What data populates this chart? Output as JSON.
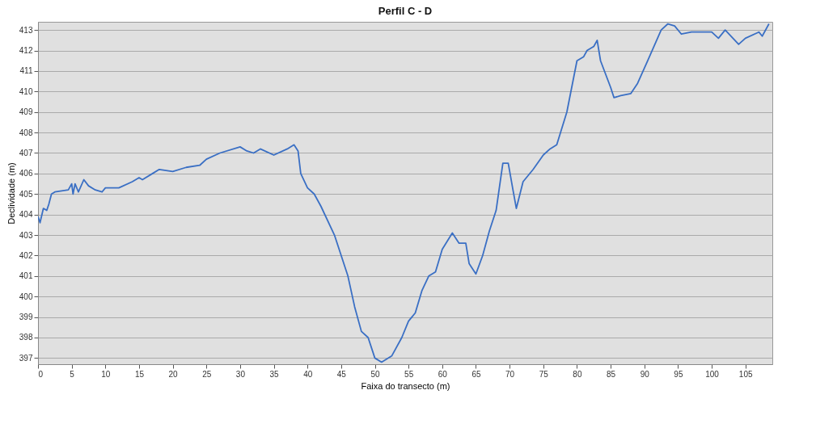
{
  "chart_data": {
    "type": "line",
    "title": "Perfil C - D",
    "xlabel": "Faixa do transecto (m)",
    "ylabel": "Declividade (m)",
    "xlim": [
      0,
      109
    ],
    "xticks": [
      0,
      5,
      10,
      15,
      20,
      25,
      30,
      35,
      40,
      45,
      50,
      55,
      60,
      65,
      70,
      75,
      80,
      85,
      90,
      95,
      100,
      105
    ],
    "ylim": [
      396.7,
      413.4
    ],
    "yticks": [
      397,
      398,
      399,
      400,
      401,
      402,
      403,
      404,
      405,
      406,
      407,
      408,
      409,
      410,
      411,
      412,
      413
    ],
    "grid": "y",
    "marker": "none",
    "line_style": "solid",
    "series": [
      {
        "color": "#3a6fc4",
        "x": [
          0,
          0.3,
          0.8,
          1.3,
          1.6,
          2,
          2.5,
          4.5,
          5,
          5.2,
          5.5,
          6,
          6.8,
          7.5,
          8.5,
          9.5,
          10,
          12,
          14,
          15,
          15.5,
          17,
          18,
          20,
          22,
          24,
          25,
          27,
          30,
          31,
          32,
          33,
          35,
          37,
          38,
          38.6,
          39,
          40,
          41,
          42,
          44,
          46,
          47,
          48,
          49,
          50,
          51,
          52.5,
          54,
          55,
          56,
          57,
          58,
          59,
          60,
          61.5,
          62.5,
          63.5,
          64,
          65,
          66,
          67,
          68,
          69,
          69.8,
          70.5,
          71,
          72,
          73.5,
          75,
          76,
          77,
          78.5,
          80,
          81,
          81.5,
          82.5,
          83,
          83.5,
          85,
          85.5,
          86.5,
          88,
          89,
          90.5,
          92.5,
          93.5,
          94.5,
          95.5,
          97,
          100,
          101,
          102,
          104,
          105,
          107,
          107.5,
          108.5
        ],
        "values": [
          403.9,
          403.6,
          404.3,
          404.2,
          404.5,
          405.0,
          405.1,
          405.2,
          405.5,
          405.0,
          405.5,
          405.1,
          405.7,
          405.4,
          405.2,
          405.1,
          405.3,
          405.3,
          405.6,
          405.8,
          405.7,
          406.0,
          406.2,
          406.1,
          406.3,
          406.4,
          406.7,
          407.0,
          407.3,
          407.1,
          407.0,
          407.2,
          406.9,
          407.2,
          407.4,
          407.1,
          406.0,
          405.3,
          405.0,
          404.4,
          403.0,
          401.0,
          399.5,
          398.3,
          398.0,
          397.0,
          396.8,
          397.1,
          398.0,
          398.8,
          399.2,
          400.3,
          401.0,
          401.2,
          402.3,
          403.1,
          402.6,
          402.6,
          401.6,
          401.1,
          402.0,
          403.2,
          404.2,
          406.5,
          406.5,
          405.2,
          404.3,
          405.6,
          406.2,
          406.9,
          407.2,
          407.4,
          409.0,
          411.5,
          411.7,
          412.0,
          412.2,
          412.5,
          411.5,
          410.2,
          409.7,
          409.8,
          409.9,
          410.4,
          411.5,
          413.0,
          413.3,
          413.2,
          412.8,
          412.9,
          412.9,
          412.6,
          413.0,
          412.3,
          412.6,
          412.9,
          412.7,
          413.3
        ]
      }
    ]
  }
}
